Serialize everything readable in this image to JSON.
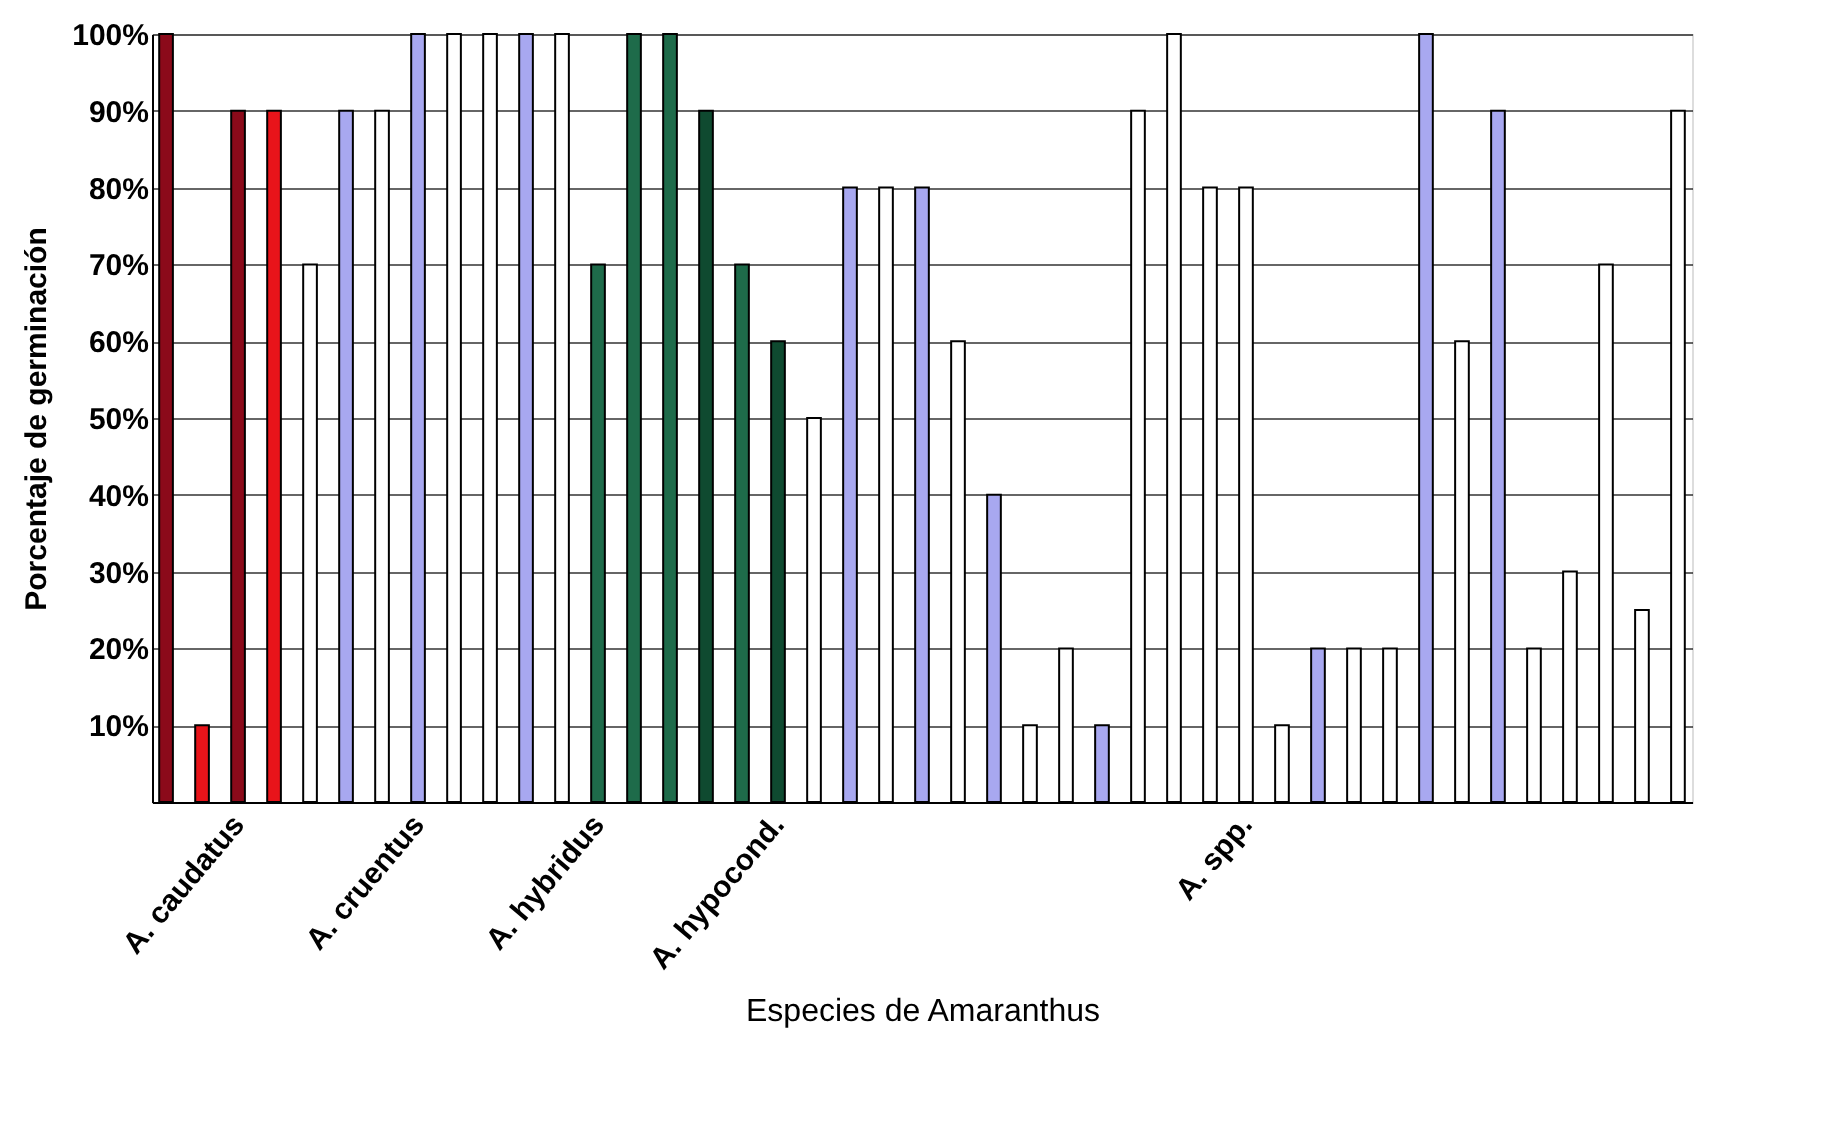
{
  "chart_data": {
    "type": "bar",
    "xlabel": "Especies de Amaranthus",
    "ylabel": "Porcentaje de germinación",
    "categories": [
      null,
      null,
      "A. caudatus",
      null,
      null,
      null,
      null,
      "A. cruentus",
      null,
      null,
      null,
      null,
      "A. hybridus",
      null,
      null,
      null,
      null,
      "A. hypocond.",
      null,
      null,
      null,
      null,
      null,
      null,
      null,
      null,
      null,
      null,
      null,
      null,
      "A. spp.",
      null,
      null,
      null,
      null,
      null,
      null,
      null,
      null,
      null,
      null,
      null,
      null
    ],
    "values": [
      100,
      10,
      90,
      90,
      70,
      90,
      90,
      100,
      100,
      100,
      100,
      100,
      70,
      100,
      100,
      90,
      70,
      60,
      50,
      80,
      80,
      80,
      60,
      40,
      10,
      20,
      10,
      90,
      100,
      80,
      80,
      10,
      20,
      20,
      20,
      100,
      60,
      90,
      20,
      30,
      70,
      25,
      90
    ],
    "colors": [
      "#8b0a1a",
      "#e8141a",
      "#8b0a1a",
      "#e8141a",
      "#ffffff",
      "#a8a8f0",
      "#ffffff",
      "#a8a8f0",
      "#ffffff",
      "#ffffff",
      "#a8a8f0",
      "#ffffff",
      "#1e6b4a",
      "#1e6b4a",
      "#1e6b4a",
      "#0f4a30",
      "#1e6b4a",
      "#0f4a30",
      "#ffffff",
      "#a8a8f0",
      "#ffffff",
      "#a8a8f0",
      "#ffffff",
      "#a8a8f0",
      "#ffffff",
      "#ffffff",
      "#a8a8f0",
      "#ffffff",
      "#ffffff",
      "#ffffff",
      "#ffffff",
      "#ffffff",
      "#a8a8f0",
      "#ffffff",
      "#ffffff",
      "#a8a8f0",
      "#ffffff",
      "#a8a8f0",
      "#ffffff",
      "#ffffff",
      "#ffffff",
      "#ffffff",
      "#ffffff"
    ],
    "ylim": [
      0,
      100
    ],
    "yticks": [
      {
        "value": 10,
        "label": "10%"
      },
      {
        "value": 20,
        "label": "20%"
      },
      {
        "value": 30,
        "label": "30%"
      },
      {
        "value": 40,
        "label": "40%"
      },
      {
        "value": 50,
        "label": "50%"
      },
      {
        "value": 60,
        "label": "60%"
      },
      {
        "value": 70,
        "label": "70%"
      },
      {
        "value": 80,
        "label": "80%"
      },
      {
        "value": 90,
        "label": "90%"
      },
      {
        "value": 100,
        "label": "100%"
      }
    ],
    "grid": "y"
  }
}
